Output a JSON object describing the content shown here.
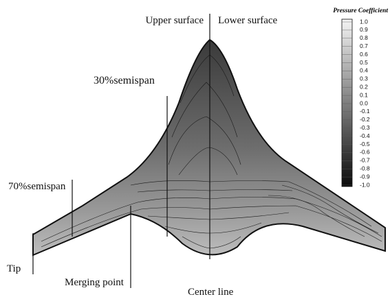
{
  "labels": {
    "upper_surface": "Upper surface",
    "lower_surface": "Lower surface",
    "semispan_30": "30%semispan",
    "semispan_70": "70%semispan",
    "tip": "Tip",
    "merging_point": "Merging point",
    "center_line": "Center line"
  },
  "colorbar": {
    "title": "Pressure Coefficient",
    "ticks": [
      "1.0",
      "0.9",
      "0.8",
      "0.7",
      "0.6",
      "0.5",
      "0.4",
      "0.3",
      "0.2",
      "0.1",
      "0.0",
      "-0.1",
      "-0.2",
      "-0.3",
      "-0.4",
      "-0.5",
      "-0.6",
      "-0.7",
      "-0.8",
      "-0.9",
      "-1.0"
    ]
  }
}
